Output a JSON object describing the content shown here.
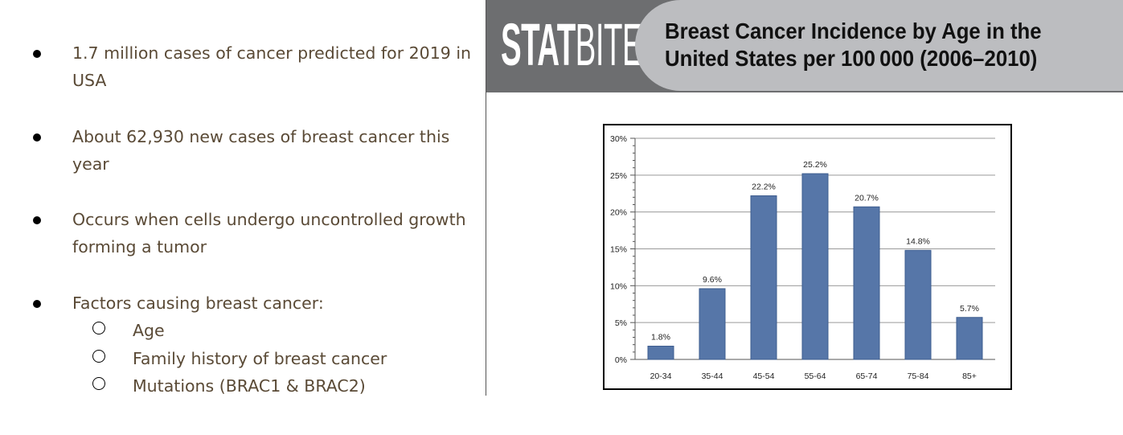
{
  "bullets": [
    "1.7 million cases of cancer predicted for 2019 in USA",
    "About 62,930 new cases of breast cancer this year",
    "Occurs when cells undergo uncontrolled growth forming a tumor",
    "Factors causing breast cancer:"
  ],
  "sub_bullets": [
    "Age",
    "Family history of breast cancer",
    "Mutations (BRAC1 & BRAC2)"
  ],
  "logo": {
    "stat": "STAT",
    "bite": "BITE"
  },
  "colors": {
    "bar": "#5676a8",
    "bar_edge": "#3e5d8f",
    "banner_dark": "#6d6e70",
    "banner_light": "#bcbdc0",
    "bullet_text": "#5a4a36"
  },
  "chart_data": {
    "type": "bar",
    "title": "Breast Cancer Incidence by Age in the United States per 100 000 (2006–2010)",
    "categories": [
      "20-34",
      "35-44",
      "45-54",
      "55-64",
      "65-74",
      "75-84",
      "85+"
    ],
    "values": [
      1.8,
      9.6,
      22.2,
      25.2,
      20.7,
      14.8,
      5.7
    ],
    "data_labels": [
      "1.8%",
      "9.6%",
      "22.2%",
      "25.2%",
      "20.7%",
      "14.8%",
      "5.7%"
    ],
    "ylim": [
      0,
      30
    ],
    "yticks": [
      0,
      5,
      10,
      15,
      20,
      25,
      30
    ],
    "ytick_labels": [
      "0%",
      "5%",
      "10%",
      "15%",
      "20%",
      "25%",
      "30%"
    ],
    "grid": true,
    "legend": "none",
    "xlabel": "",
    "ylabel": ""
  }
}
